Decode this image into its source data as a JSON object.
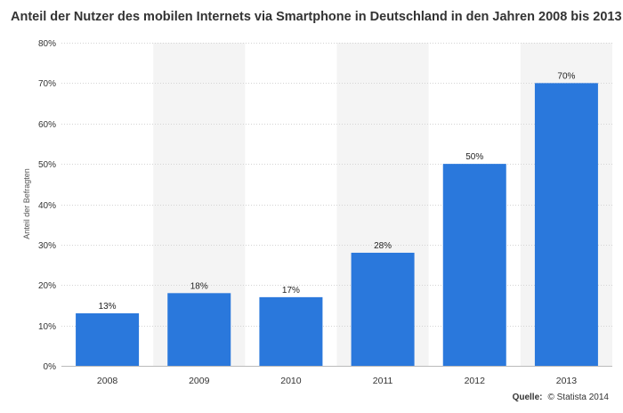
{
  "chart_data": {
    "type": "bar",
    "title": "Anteil der Nutzer des mobilen Internets via Smartphone in Deutschland in den Jahren 2008 bis 2013",
    "categories": [
      "2008",
      "2009",
      "2010",
      "2011",
      "2012",
      "2013"
    ],
    "values": [
      13,
      18,
      17,
      28,
      50,
      70
    ],
    "data_labels": [
      "13%",
      "18%",
      "17%",
      "28%",
      "50%",
      "70%"
    ],
    "xlabel": "",
    "ylabel": "Anteil der Befragten",
    "ylim": [
      0,
      80
    ],
    "yticks": [
      0,
      10,
      20,
      30,
      40,
      50,
      60,
      70,
      80
    ],
    "ytick_labels": [
      "0%",
      "10%",
      "20%",
      "30%",
      "40%",
      "50%",
      "60%",
      "70%",
      "80%"
    ],
    "grid": true,
    "bar_color": "#2a78dc",
    "band_color": "#f4f4f4"
  },
  "source": {
    "label": "Quelle:",
    "text": "© Statista 2014"
  }
}
